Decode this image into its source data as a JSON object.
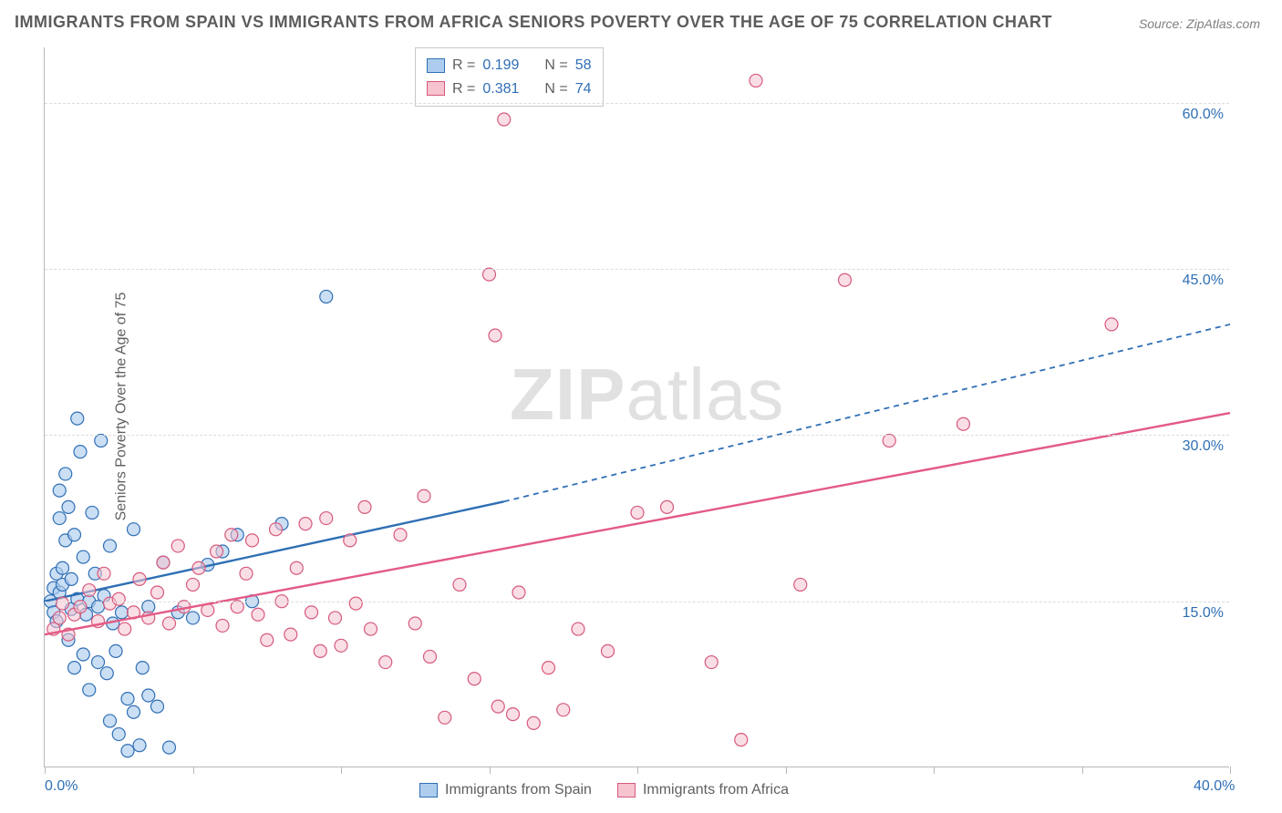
{
  "title": "IMMIGRANTS FROM SPAIN VS IMMIGRANTS FROM AFRICA SENIORS POVERTY OVER THE AGE OF 75 CORRELATION CHART",
  "source": "Source: ZipAtlas.com",
  "y_axis_label": "Seniors Poverty Over the Age of 75",
  "watermark": {
    "bold": "ZIP",
    "rest": "atlas"
  },
  "chart": {
    "type": "scatter",
    "background_color": "#ffffff",
    "grid_color": "#dcdcdc",
    "axis_color": "#b8b8b8",
    "tick_label_color": "#2f6fb5",
    "xlim": [
      0,
      40
    ],
    "ylim": [
      0,
      65
    ],
    "x_ticks": [
      0,
      5,
      10,
      15,
      20,
      25,
      30,
      35,
      40
    ],
    "x_tick_labels": {
      "0": "0.0%",
      "40": "40.0%"
    },
    "y_gridlines": [
      15,
      30,
      45,
      60
    ],
    "y_tick_labels": {
      "15": "15.0%",
      "30": "30.0%",
      "45": "45.0%",
      "60": "60.0%"
    },
    "marker_radius": 7,
    "marker_stroke_width": 1.2,
    "trend_line_width": 2.4,
    "trend_dash": "6,5"
  },
  "legend_top": {
    "rows": [
      {
        "swatch_fill": "#aecdee",
        "swatch_stroke": "#2f6fb5",
        "r_label": "R =",
        "r": "0.199",
        "n_label": "N =",
        "n": "58"
      },
      {
        "swatch_fill": "#f6c3cf",
        "swatch_stroke": "#d65a7d",
        "r_label": "R =",
        "r": "0.381",
        "n_label": "N =",
        "n": "74"
      }
    ]
  },
  "legend_bottom": {
    "items": [
      {
        "swatch_fill": "#aecdee",
        "swatch_stroke": "#2f6fb5",
        "label": "Immigrants from Spain"
      },
      {
        "swatch_fill": "#f6c3cf",
        "swatch_stroke": "#d65a7d",
        "label": "Immigrants from Africa"
      }
    ]
  },
  "series": [
    {
      "name": "spain",
      "fill": "#aecdee",
      "stroke": "#2f6fb5",
      "fill_opacity": 0.65,
      "trend": {
        "x1": 0,
        "y1": 15.0,
        "x2": 15.5,
        "y2": 24.0,
        "dash_x2": 40,
        "dash_y2": 40.0,
        "color": "#2f6fb5"
      },
      "points": [
        [
          0.2,
          15.0
        ],
        [
          0.3,
          16.2
        ],
        [
          0.3,
          14.0
        ],
        [
          0.4,
          17.5
        ],
        [
          0.4,
          13.2
        ],
        [
          0.5,
          15.8
        ],
        [
          0.5,
          22.5
        ],
        [
          0.5,
          25.0
        ],
        [
          0.6,
          18.0
        ],
        [
          0.6,
          16.5
        ],
        [
          0.7,
          20.5
        ],
        [
          0.7,
          26.5
        ],
        [
          0.8,
          23.5
        ],
        [
          0.8,
          11.5
        ],
        [
          0.9,
          14.3
        ],
        [
          0.9,
          17.0
        ],
        [
          1.0,
          21.0
        ],
        [
          1.0,
          9.0
        ],
        [
          1.1,
          15.2
        ],
        [
          1.1,
          31.5
        ],
        [
          1.2,
          28.5
        ],
        [
          1.3,
          19.0
        ],
        [
          1.3,
          10.2
        ],
        [
          1.4,
          13.8
        ],
        [
          1.5,
          15.0
        ],
        [
          1.5,
          7.0
        ],
        [
          1.6,
          23.0
        ],
        [
          1.7,
          17.5
        ],
        [
          1.8,
          14.5
        ],
        [
          1.8,
          9.5
        ],
        [
          1.9,
          29.5
        ],
        [
          2.0,
          15.5
        ],
        [
          2.1,
          8.5
        ],
        [
          2.2,
          20.0
        ],
        [
          2.2,
          4.2
        ],
        [
          2.3,
          13.0
        ],
        [
          2.4,
          10.5
        ],
        [
          2.5,
          3.0
        ],
        [
          2.6,
          14.0
        ],
        [
          2.8,
          6.2
        ],
        [
          2.8,
          1.5
        ],
        [
          3.0,
          21.5
        ],
        [
          3.0,
          5.0
        ],
        [
          3.2,
          2.0
        ],
        [
          3.3,
          9.0
        ],
        [
          3.5,
          6.5
        ],
        [
          3.5,
          14.5
        ],
        [
          3.8,
          5.5
        ],
        [
          4.0,
          18.5
        ],
        [
          4.2,
          1.8
        ],
        [
          4.5,
          14.0
        ],
        [
          5.0,
          13.5
        ],
        [
          5.5,
          18.3
        ],
        [
          6.0,
          19.5
        ],
        [
          6.5,
          21.0
        ],
        [
          7.0,
          15.0
        ],
        [
          9.5,
          42.5
        ],
        [
          8.0,
          22.0
        ]
      ]
    },
    {
      "name": "africa",
      "fill": "#f6c3cf",
      "stroke": "#d65a7d",
      "fill_opacity": 0.55,
      "trend": {
        "x1": 0,
        "y1": 12.0,
        "x2": 40,
        "y2": 32.0,
        "color": "#e35a85"
      },
      "points": [
        [
          0.3,
          12.5
        ],
        [
          0.5,
          13.5
        ],
        [
          0.6,
          14.8
        ],
        [
          0.8,
          12.0
        ],
        [
          1.0,
          13.8
        ],
        [
          1.2,
          14.5
        ],
        [
          1.5,
          16.0
        ],
        [
          1.8,
          13.2
        ],
        [
          2.0,
          17.5
        ],
        [
          2.2,
          14.8
        ],
        [
          2.5,
          15.2
        ],
        [
          2.7,
          12.5
        ],
        [
          3.0,
          14.0
        ],
        [
          3.2,
          17.0
        ],
        [
          3.5,
          13.5
        ],
        [
          3.8,
          15.8
        ],
        [
          4.0,
          18.5
        ],
        [
          4.2,
          13.0
        ],
        [
          4.5,
          20.0
        ],
        [
          4.7,
          14.5
        ],
        [
          5.0,
          16.5
        ],
        [
          5.2,
          18.0
        ],
        [
          5.5,
          14.2
        ],
        [
          5.8,
          19.5
        ],
        [
          6.0,
          12.8
        ],
        [
          6.3,
          21.0
        ],
        [
          6.5,
          14.5
        ],
        [
          6.8,
          17.5
        ],
        [
          7.0,
          20.5
        ],
        [
          7.2,
          13.8
        ],
        [
          7.5,
          11.5
        ],
        [
          7.8,
          21.5
        ],
        [
          8.0,
          15.0
        ],
        [
          8.3,
          12.0
        ],
        [
          8.5,
          18.0
        ],
        [
          8.8,
          22.0
        ],
        [
          9.0,
          14.0
        ],
        [
          9.3,
          10.5
        ],
        [
          9.5,
          22.5
        ],
        [
          9.8,
          13.5
        ],
        [
          10.0,
          11.0
        ],
        [
          10.3,
          20.5
        ],
        [
          10.5,
          14.8
        ],
        [
          10.8,
          23.5
        ],
        [
          11.0,
          12.5
        ],
        [
          11.5,
          9.5
        ],
        [
          12.0,
          21.0
        ],
        [
          12.5,
          13.0
        ],
        [
          12.8,
          24.5
        ],
        [
          13.0,
          10.0
        ],
        [
          13.5,
          4.5
        ],
        [
          14.0,
          16.5
        ],
        [
          14.5,
          8.0
        ],
        [
          15.0,
          44.5
        ],
        [
          15.3,
          5.5
        ],
        [
          15.8,
          4.8
        ],
        [
          16.0,
          15.8
        ],
        [
          16.5,
          4.0
        ],
        [
          17.0,
          9.0
        ],
        [
          17.5,
          5.2
        ],
        [
          18.0,
          12.5
        ],
        [
          15.5,
          58.5
        ],
        [
          15.2,
          39.0
        ],
        [
          20.0,
          23.0
        ],
        [
          21.0,
          23.5
        ],
        [
          22.5,
          9.5
        ],
        [
          24.0,
          62.0
        ],
        [
          25.5,
          16.5
        ],
        [
          27.0,
          44.0
        ],
        [
          28.5,
          29.5
        ],
        [
          31.0,
          31.0
        ],
        [
          23.5,
          2.5
        ],
        [
          36.0,
          40.0
        ],
        [
          19.0,
          10.5
        ]
      ]
    }
  ]
}
